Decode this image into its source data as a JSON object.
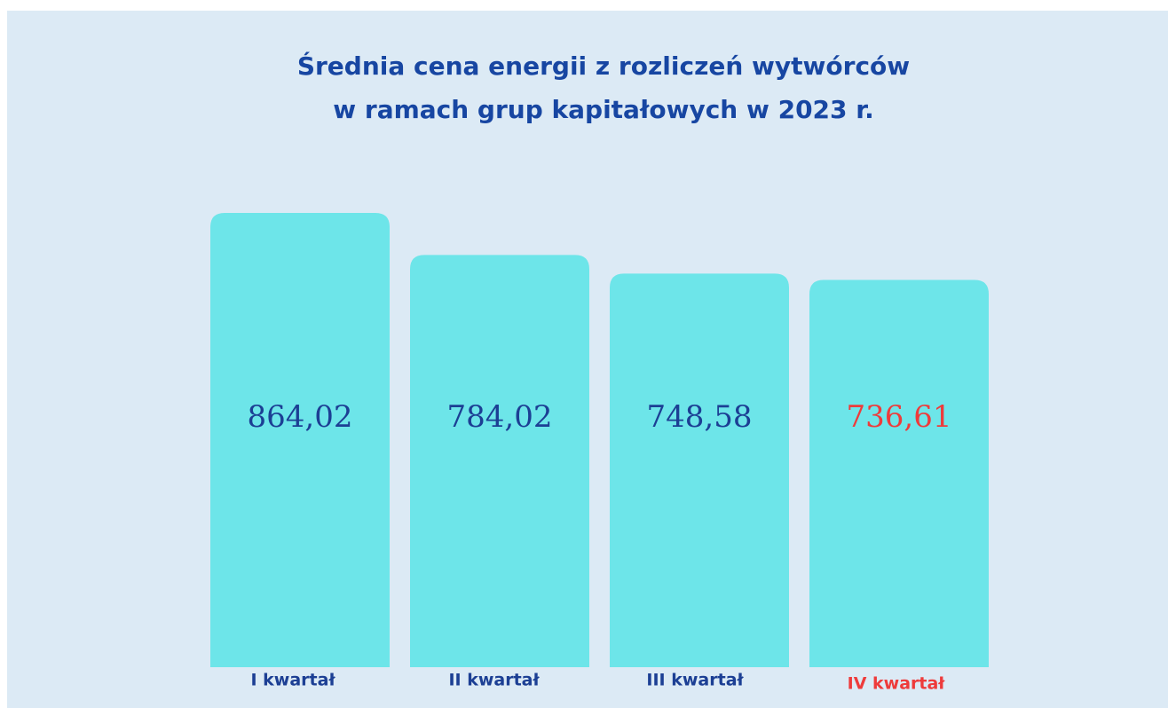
{
  "chart_data": {
    "type": "bar",
    "title": [
      "Średnia cena energii z rozliczeń wytwórców",
      "w ramach grup kapitałowych w 2023 r."
    ],
    "categories": [
      "I kwartał",
      "II kwartał",
      "III kwartał",
      "IV kwartał"
    ],
    "values": [
      864.02,
      784.02,
      748.58,
      736.61
    ],
    "value_labels": [
      "864,02",
      "784,02",
      "748,58",
      "736,61"
    ],
    "color": "#6de5e9",
    "label_colors": [
      "#1c3f94",
      "#1c3f94",
      "#1c3f94",
      "#ee3b3b"
    ],
    "title_color": "#1746a2"
  }
}
